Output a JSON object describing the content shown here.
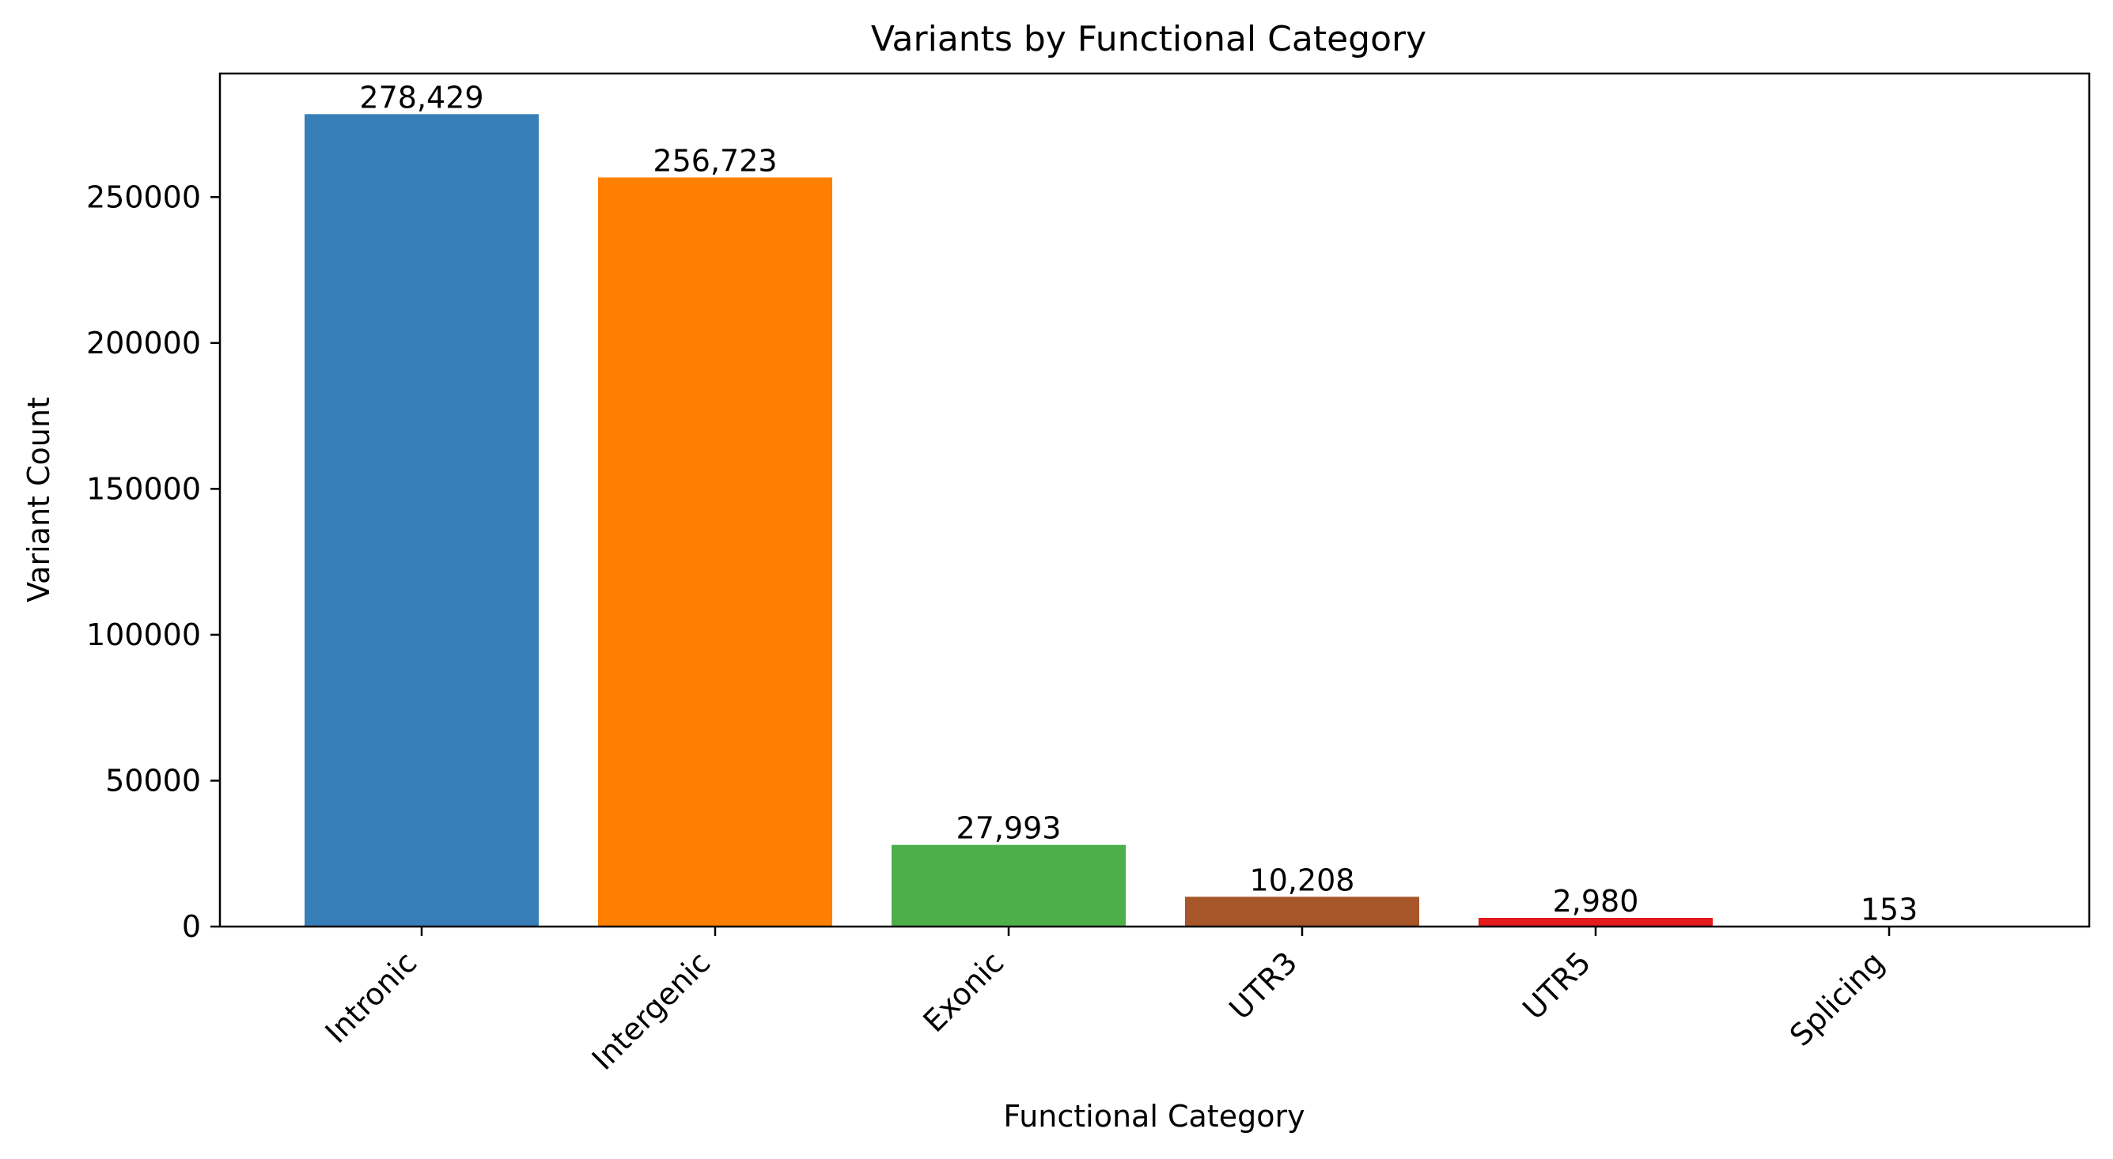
{
  "chart_data": {
    "type": "bar",
    "title": "Variants by Functional Category",
    "xlabel": "Functional Category",
    "ylabel": "Variant Count",
    "categories": [
      "Intronic",
      "Intergenic",
      "Exonic",
      "UTR3",
      "UTR5",
      "Splicing"
    ],
    "values": [
      278429,
      256723,
      27993,
      10208,
      2980,
      153
    ],
    "value_labels": [
      "278,429",
      "256,723",
      "27,993",
      "10,208",
      "2,980",
      "153"
    ],
    "colors": [
      "#377eb8",
      "#ff7f00",
      "#4daf4a",
      "#a65628",
      "#e41a1c",
      "#999999"
    ],
    "ylim": [
      0,
      292341
    ],
    "yticks": [
      0,
      50000,
      100000,
      150000,
      200000,
      250000
    ],
    "ytick_labels": [
      "0",
      "50000",
      "100000",
      "150000",
      "200000",
      "250000"
    ],
    "grid": false,
    "legend": "none"
  }
}
